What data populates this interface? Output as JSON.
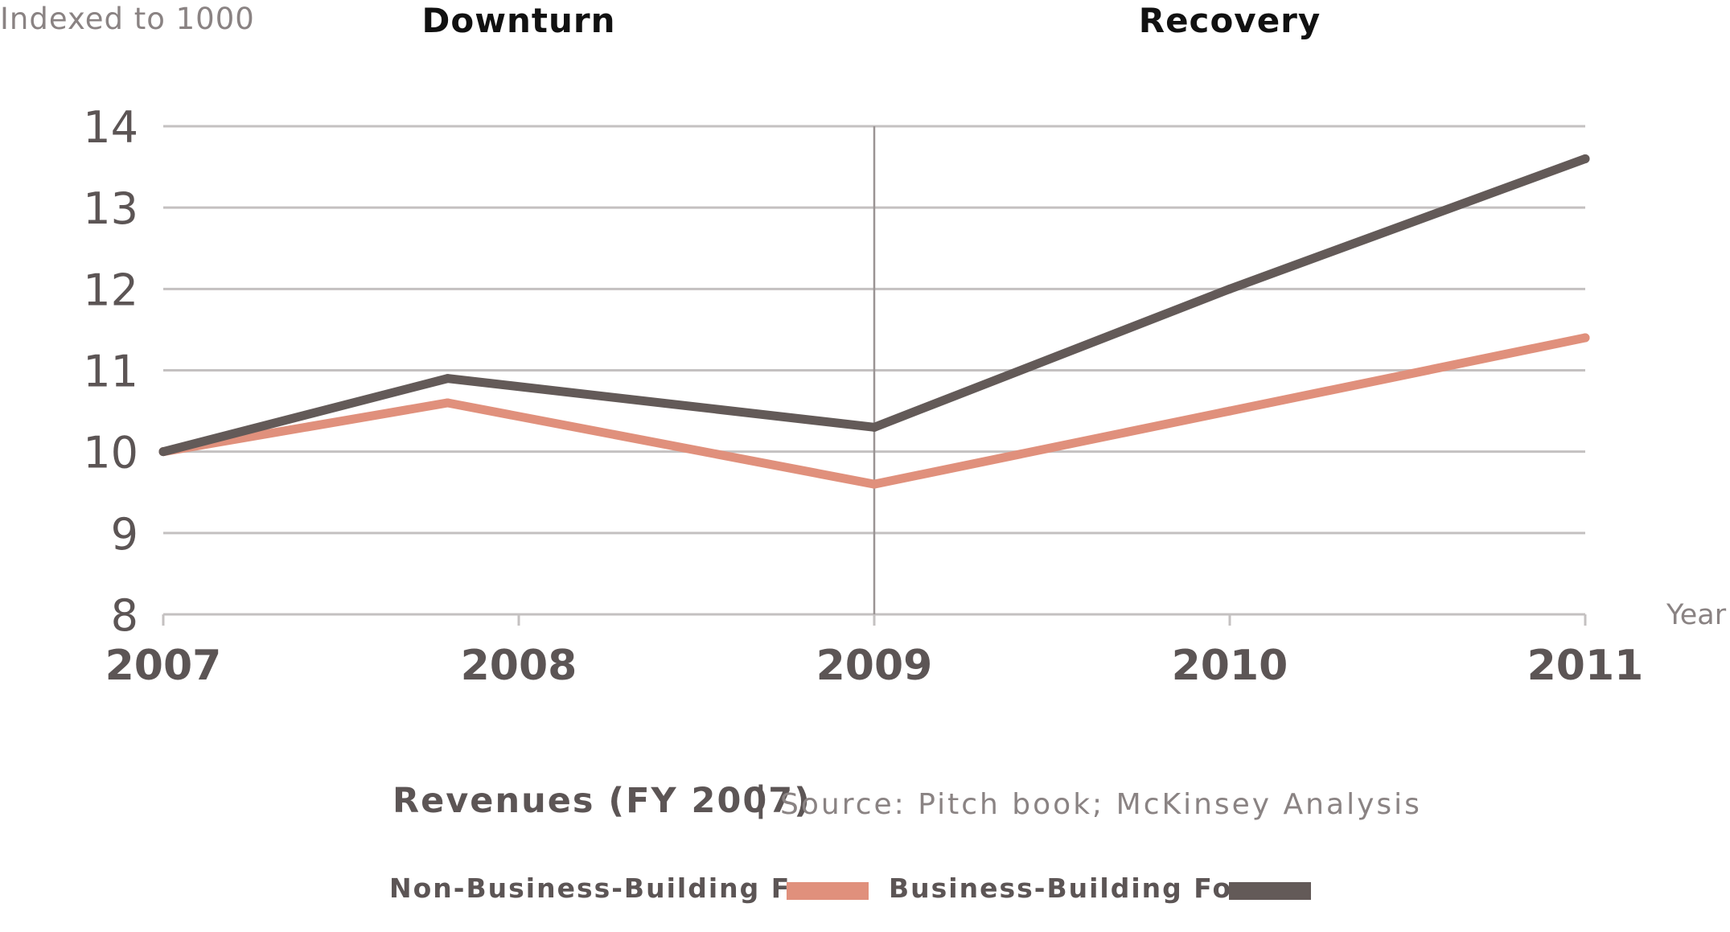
{
  "chart_data": {
    "type": "line",
    "x": [
      "2007",
      "2008",
      "2009",
      "2010",
      "2011"
    ],
    "x_positions": [
      2007,
      2007.8,
      2009,
      2010,
      2011
    ],
    "series": [
      {
        "name": "Non-Business-Building Focus",
        "color": "#e0907c",
        "values": [
          10,
          10.6,
          9.6,
          10.5,
          11.4
        ]
      },
      {
        "name": "Business-Building Focus",
        "color": "#635a58",
        "values": [
          10,
          10.9,
          10.3,
          12.0,
          13.6
        ]
      }
    ],
    "ylim": [
      8,
      14
    ],
    "yticks": [
      "8",
      "9",
      "10",
      "11",
      "12",
      "13",
      "14"
    ],
    "xlim": [
      2007,
      2011
    ],
    "ylabel": "Indexed  to 1000",
    "xlabel": "Year",
    "phases": [
      {
        "label": "Downturn",
        "range": [
          2007,
          2009
        ]
      },
      {
        "label": "Recovery",
        "range": [
          2009,
          2011
        ]
      }
    ],
    "divider_at": 2009,
    "grid": true,
    "legend_position": "bottom"
  },
  "caption": {
    "title": "Revenues (FY 2007)",
    "separator": "|",
    "source": "Source: Pitch book; McKinsey Analysis"
  },
  "legend": [
    {
      "label": "Non-Business-Building Focus",
      "color": "#e0907c"
    },
    {
      "label": "Business-Building  Focus",
      "color": "#635a58"
    }
  ],
  "colors": {
    "grid": "#c4c1c1",
    "divider": "#9a9494",
    "axis_text": "#5c5555",
    "muted_text": "#8a8383"
  }
}
